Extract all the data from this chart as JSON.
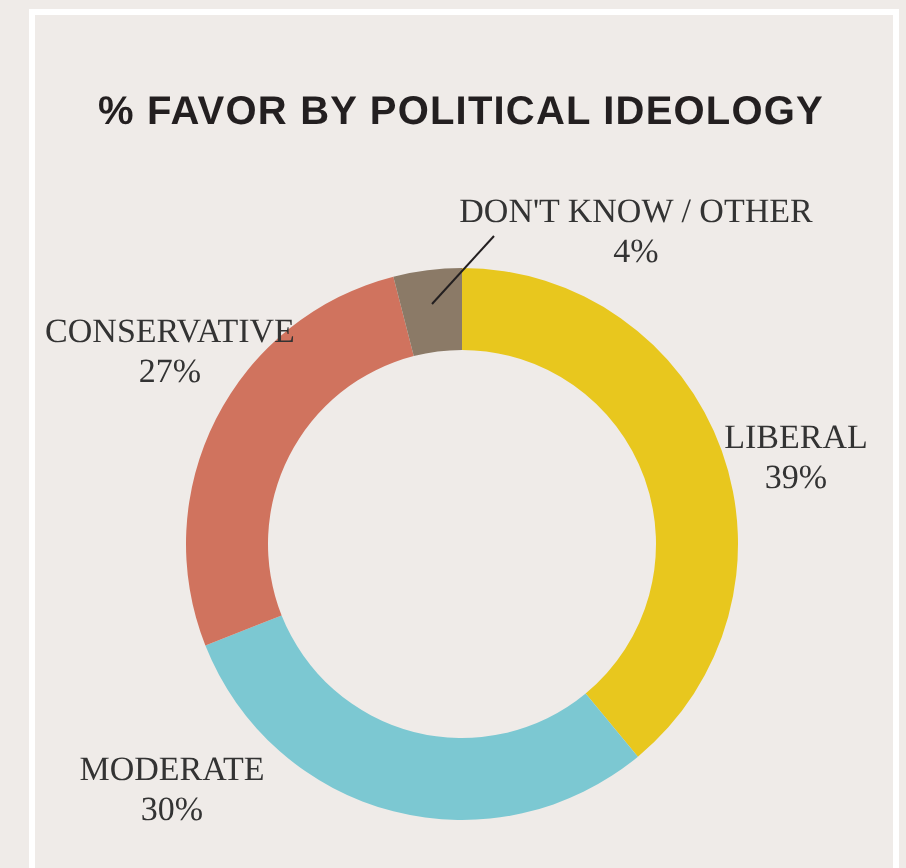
{
  "chart_data": {
    "type": "donut",
    "title": "% FAVOR BY POLITICAL IDEOLOGY",
    "categories": [
      "LIBERAL",
      "MODERATE",
      "CONSERVATIVE",
      "DON'T KNOW / OTHER"
    ],
    "values": [
      39,
      30,
      27,
      4
    ],
    "colors": [
      "#e8c71e",
      "#7cc8d2",
      "#d0735e",
      "#8b7a67"
    ],
    "value_labels": [
      "39%",
      "30%",
      "27%",
      "4%"
    ]
  }
}
